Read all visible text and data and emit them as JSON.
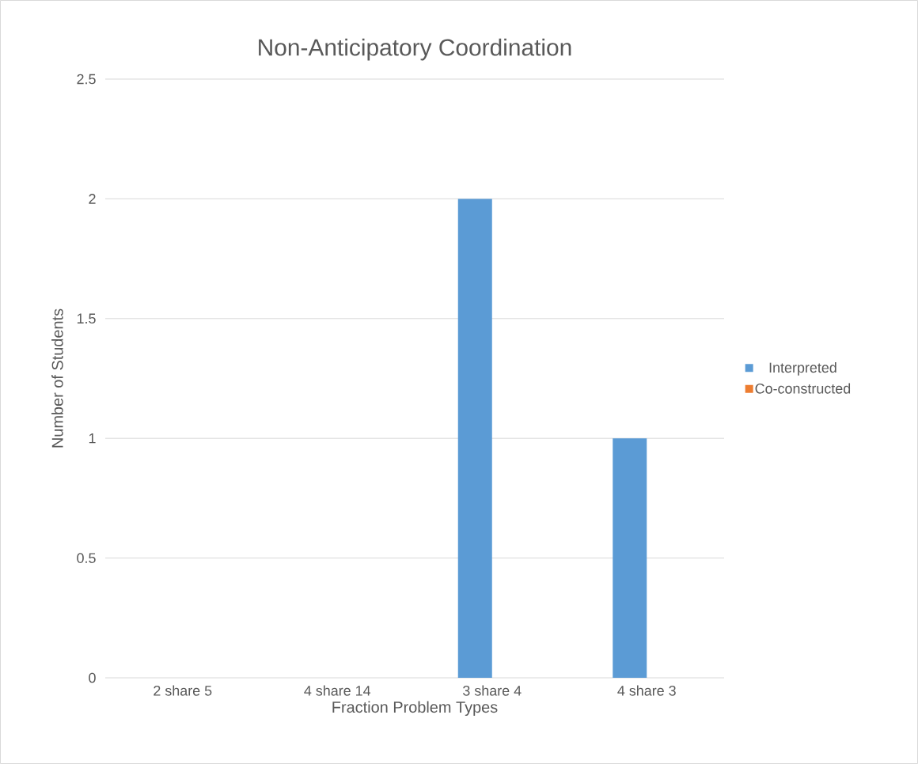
{
  "chart_data": {
    "type": "bar",
    "title": "Non-Anticipatory Coordination",
    "xlabel": "Fraction Problem Types",
    "ylabel": "Number of Students",
    "categories": [
      "2 share 5",
      "4 share 14",
      "3 share 4",
      "4 share 3"
    ],
    "series": [
      {
        "name": "Interpreted",
        "color": "#5b9bd5",
        "values": [
          0,
          0,
          2,
          1
        ]
      },
      {
        "name": "Co-constructed",
        "color": "#ed7d31",
        "values": [
          0,
          0,
          0,
          0
        ]
      }
    ],
    "ylim": [
      0,
      2.5
    ],
    "yticks": [
      0,
      0.5,
      1,
      1.5,
      2,
      2.5
    ],
    "grid": "y",
    "legend": "right"
  }
}
